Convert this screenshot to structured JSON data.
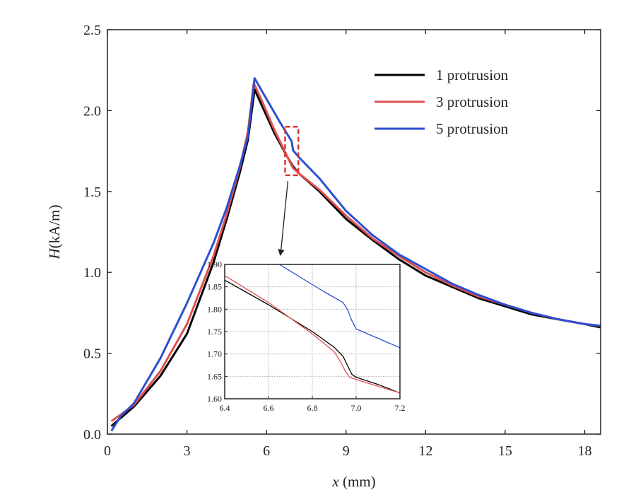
{
  "chart_data": {
    "type": "line",
    "xlabel": {
      "italic": "x",
      "rest": " (mm)"
    },
    "ylabel": {
      "italic": "H",
      "rest": "(kA/m)"
    },
    "xlim": [
      0,
      18.6
    ],
    "ylim": [
      0,
      2.5
    ],
    "x_ticks": [
      0,
      3,
      6,
      9,
      12,
      15,
      18
    ],
    "y_ticks": [
      "0.0",
      "0.5",
      "1.0",
      "1.5",
      "2.0",
      "2.5"
    ],
    "legend_position": "top-right",
    "series": [
      {
        "name": "1 protrusion",
        "color": "#000000",
        "points": [
          [
            0.15,
            0.05
          ],
          [
            0.5,
            0.1
          ],
          [
            1.0,
            0.17
          ],
          [
            2.0,
            0.36
          ],
          [
            3.0,
            0.62
          ],
          [
            4.0,
            1.06
          ],
          [
            4.5,
            1.33
          ],
          [
            5.0,
            1.62
          ],
          [
            5.3,
            1.82
          ],
          [
            5.55,
            2.13
          ],
          [
            5.8,
            2.04
          ],
          [
            6.3,
            1.86
          ],
          [
            6.8,
            1.71
          ],
          [
            6.98,
            1.66
          ],
          [
            7.05,
            1.645
          ],
          [
            7.2,
            1.615
          ],
          [
            8.0,
            1.5
          ],
          [
            9.0,
            1.33
          ],
          [
            10.0,
            1.2
          ],
          [
            11.0,
            1.08
          ],
          [
            12.0,
            0.98
          ],
          [
            13.0,
            0.91
          ],
          [
            14.0,
            0.84
          ],
          [
            15.0,
            0.79
          ],
          [
            16.0,
            0.74
          ],
          [
            17.0,
            0.71
          ],
          [
            18.0,
            0.68
          ],
          [
            18.6,
            0.66
          ]
        ]
      },
      {
        "name": "3 protrusion",
        "color": "#e05050",
        "points": [
          [
            0.15,
            0.08
          ],
          [
            0.5,
            0.12
          ],
          [
            1.0,
            0.18
          ],
          [
            2.0,
            0.39
          ],
          [
            3.0,
            0.68
          ],
          [
            4.0,
            1.1
          ],
          [
            4.5,
            1.36
          ],
          [
            5.0,
            1.65
          ],
          [
            5.3,
            1.87
          ],
          [
            5.52,
            2.17
          ],
          [
            5.8,
            2.07
          ],
          [
            6.3,
            1.88
          ],
          [
            6.8,
            1.71
          ],
          [
            6.95,
            1.66
          ],
          [
            7.0,
            1.645
          ],
          [
            7.2,
            1.615
          ],
          [
            8.0,
            1.51
          ],
          [
            9.0,
            1.35
          ],
          [
            10.0,
            1.21
          ],
          [
            11.0,
            1.1
          ],
          [
            12.0,
            1.0
          ],
          [
            13.0,
            0.92
          ],
          [
            14.0,
            0.85
          ],
          [
            15.0,
            0.8
          ],
          [
            16.0,
            0.75
          ],
          [
            17.0,
            0.71
          ],
          [
            18.0,
            0.68
          ],
          [
            18.6,
            0.67
          ]
        ]
      },
      {
        "name": "5 protrusion",
        "color": "#2e4fd0",
        "points": [
          [
            0.15,
            0.02
          ],
          [
            0.5,
            0.11
          ],
          [
            1.0,
            0.19
          ],
          [
            2.0,
            0.47
          ],
          [
            3.0,
            0.81
          ],
          [
            4.0,
            1.18
          ],
          [
            4.5,
            1.4
          ],
          [
            5.0,
            1.66
          ],
          [
            5.3,
            1.84
          ],
          [
            5.55,
            2.2
          ],
          [
            5.9,
            2.1
          ],
          [
            6.5,
            1.93
          ],
          [
            6.95,
            1.81
          ],
          [
            7.0,
            1.755
          ],
          [
            7.2,
            1.715
          ],
          [
            8.0,
            1.58
          ],
          [
            9.0,
            1.38
          ],
          [
            10.0,
            1.23
          ],
          [
            11.0,
            1.11
          ],
          [
            12.0,
            1.02
          ],
          [
            13.0,
            0.93
          ],
          [
            14.0,
            0.86
          ],
          [
            15.0,
            0.8
          ],
          [
            16.0,
            0.75
          ],
          [
            17.0,
            0.71
          ],
          [
            18.0,
            0.68
          ],
          [
            18.6,
            0.67
          ]
        ]
      }
    ],
    "inset": {
      "xlim": [
        6.4,
        7.2
      ],
      "ylim": [
        1.6,
        1.9
      ],
      "x_ticks": [
        "6.4",
        "6.6",
        "6.8",
        "7.0",
        "7.2"
      ],
      "y_ticks": [
        "1.60",
        "1.65",
        "1.70",
        "1.75",
        "1.80",
        "1.85",
        "1.90"
      ],
      "highlight_x": [
        6.7,
        7.2
      ],
      "highlight_y": [
        1.6,
        1.9
      ],
      "series": [
        {
          "color": "#000000",
          "points": [
            [
              6.4,
              1.865
            ],
            [
              6.6,
              1.81
            ],
            [
              6.8,
              1.75
            ],
            [
              6.9,
              1.715
            ],
            [
              6.94,
              1.695
            ],
            [
              6.96,
              1.675
            ],
            [
              6.98,
              1.655
            ],
            [
              7.0,
              1.648
            ],
            [
              7.1,
              1.632
            ],
            [
              7.2,
              1.613
            ]
          ]
        },
        {
          "color": "#e05050",
          "points": [
            [
              6.4,
              1.875
            ],
            [
              6.6,
              1.815
            ],
            [
              6.8,
              1.745
            ],
            [
              6.9,
              1.705
            ],
            [
              6.93,
              1.682
            ],
            [
              6.95,
              1.662
            ],
            [
              6.97,
              1.648
            ],
            [
              7.0,
              1.643
            ],
            [
              7.1,
              1.628
            ],
            [
              7.2,
              1.613
            ]
          ]
        },
        {
          "color": "#2e4fd0",
          "points": [
            [
              6.65,
              1.9
            ],
            [
              6.75,
              1.87
            ],
            [
              6.85,
              1.84
            ],
            [
              6.94,
              1.815
            ],
            [
              6.96,
              1.8
            ],
            [
              6.98,
              1.775
            ],
            [
              7.0,
              1.756
            ],
            [
              7.1,
              1.735
            ],
            [
              7.2,
              1.714
            ]
          ]
        }
      ]
    }
  }
}
